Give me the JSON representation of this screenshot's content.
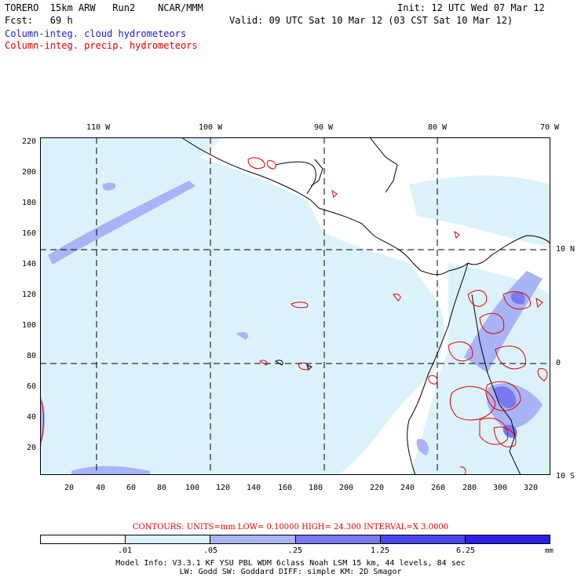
{
  "header": {
    "model_title": "TORERO  15km ARW   Run2    NCAR/MMM",
    "init": "Init: 12 UTC Wed 07 Mar 12",
    "forecast": "Fcst:   69 h",
    "valid": "Valid: 09 UTC Sat 10 Mar 12 (03 CST Sat 10 Mar 12)",
    "field_cloud": "Column-integ. cloud hydrometeors",
    "field_precip": "Column-integ. precip. hydrometeors"
  },
  "colors": {
    "cloud_label": "#1a1adc",
    "precip_label": "#e00000",
    "contour": "#e00000",
    "coastline": "#000000",
    "shade_levels": [
      "#ffffff",
      "#dcf2fb",
      "#a8b4f5",
      "#7a79f0",
      "#4a46ec",
      "#2a22e8"
    ]
  },
  "map": {
    "lon_labels": [
      "110 W",
      "100 W",
      "90 W",
      "80 W",
      "70 W"
    ],
    "lat_labels": [
      "10 N",
      "0",
      "10 S"
    ],
    "y_ticks": [
      "220",
      "200",
      "180",
      "160",
      "140",
      "120",
      "100",
      "80",
      "60",
      "40",
      "20"
    ],
    "x_ticks": [
      "20",
      "40",
      "60",
      "80",
      "100",
      "120",
      "140",
      "160",
      "180",
      "200",
      "220",
      "240",
      "260",
      "280",
      "300",
      "320"
    ]
  },
  "legend": {
    "contours_text": "CONTOURS:  UNITS=mm  LOW= 0.10000       HIGH=  24.300       INTERVAL=X  3.0000",
    "colorbar_labels": [
      ".01",
      ".05",
      ".25",
      "1.25",
      "6.25"
    ],
    "units": "mm"
  },
  "footer": {
    "model_info_1": "Model Info: V3.3.1   KF      YSU PBL  WDM 6class  Noah LSM  15 km,   44 levels,   84 sec",
    "model_info_2": "LW: Godd SW: Goddard DIFF: simple KM: 2D Smagor"
  }
}
